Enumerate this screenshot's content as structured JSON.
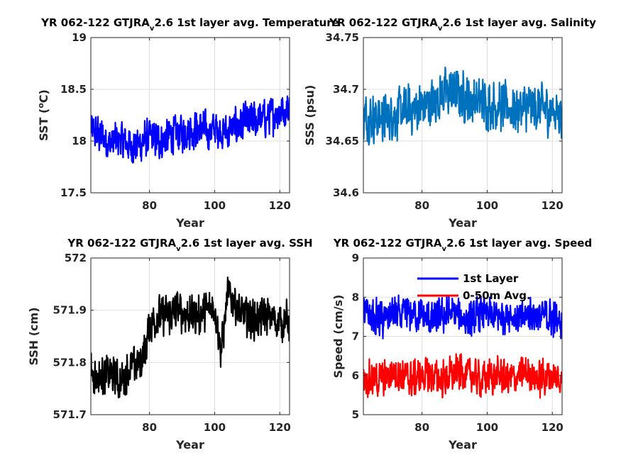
{
  "chart_data": [
    {
      "type": "line",
      "title": {
        "pre": "YR 062-122 GTJRA",
        "sub": "v",
        "post": "2.6 1st layer avg. Temperature"
      },
      "xlabel": "Year",
      "ylabel": {
        "pre": "SST (",
        "sup": "o",
        "post": "C)"
      },
      "xlim": [
        62,
        123
      ],
      "ylim": [
        17.5,
        19
      ],
      "xticks": [
        "80",
        "100",
        "120"
      ],
      "yticks": [
        "17.5",
        "18",
        "18.5",
        "19"
      ],
      "grid": true,
      "series": [
        {
          "color": "#0000ff",
          "x": [
            62,
            65,
            68,
            71,
            74,
            77,
            80,
            83,
            86,
            89,
            92,
            95,
            98,
            101,
            104,
            107,
            110,
            113,
            116,
            119,
            122
          ],
          "y": [
            18.1,
            18.05,
            17.98,
            18.02,
            17.95,
            17.98,
            18.03,
            18.0,
            18.05,
            18.08,
            18.1,
            18.12,
            18.1,
            18.12,
            18.08,
            18.15,
            18.18,
            18.2,
            18.22,
            18.28,
            18.3
          ]
        }
      ]
    },
    {
      "type": "line",
      "title": {
        "pre": "YR 062-122 GTJRA",
        "sub": "v",
        "post": "2.6 1st layer avg. Salinity"
      },
      "xlabel": "Year",
      "ylabel": {
        "pre": "SSS (psu)",
        "sup": "",
        "post": ""
      },
      "xlim": [
        62,
        123
      ],
      "ylim": [
        34.6,
        34.75
      ],
      "xticks": [
        "80",
        "100",
        "120"
      ],
      "yticks": [
        "34.6",
        "34.65",
        "34.7",
        "34.75"
      ],
      "grid": true,
      "series": [
        {
          "color": "#0072bd",
          "x": [
            62,
            65,
            68,
            71,
            74,
            77,
            80,
            83,
            86,
            89,
            92,
            95,
            98,
            101,
            104,
            107,
            110,
            113,
            116,
            119,
            122
          ],
          "y": [
            34.675,
            34.673,
            34.672,
            34.675,
            34.678,
            34.68,
            34.683,
            34.688,
            34.695,
            34.697,
            34.693,
            34.69,
            34.688,
            34.685,
            34.683,
            34.682,
            34.681,
            34.683,
            34.682,
            34.68,
            34.678
          ]
        }
      ]
    },
    {
      "type": "line",
      "title": {
        "pre": "YR 062-122 GTJRA",
        "sub": "v",
        "post": "2.6 1st layer avg. SSH"
      },
      "xlabel": "Year",
      "ylabel": {
        "pre": "SSH (cm)",
        "sup": "",
        "post": ""
      },
      "xlim": [
        62,
        123
      ],
      "ylim": [
        571.7,
        572
      ],
      "xticks": [
        "80",
        "100",
        "120"
      ],
      "yticks": [
        "571.7",
        "571.8",
        "571.9",
        "572"
      ],
      "grid": true,
      "series": [
        {
          "color": "#000000",
          "x": [
            62,
            65,
            68,
            71,
            74,
            77,
            79,
            80,
            83,
            86,
            89,
            92,
            95,
            98,
            100,
            102,
            104,
            106,
            108,
            110,
            113,
            116,
            119,
            122
          ],
          "y": [
            571.78,
            571.77,
            571.78,
            571.76,
            571.79,
            571.8,
            571.83,
            571.87,
            571.89,
            571.89,
            571.9,
            571.89,
            571.89,
            571.9,
            571.91,
            571.82,
            571.93,
            571.92,
            571.89,
            571.89,
            571.88,
            571.89,
            571.88,
            571.88
          ]
        }
      ]
    },
    {
      "type": "line",
      "title": {
        "pre": "YR 062-122 GTJRA",
        "sub": "v",
        "post": "2.6 1st layer avg. Speed"
      },
      "xlabel": "Year",
      "ylabel": {
        "pre": "Speed (cm/s)",
        "sup": "",
        "post": ""
      },
      "xlim": [
        62,
        123
      ],
      "ylim": [
        5,
        9
      ],
      "xticks": [
        "80",
        "100",
        "120"
      ],
      "yticks": [
        "5",
        "6",
        "7",
        "8",
        "9"
      ],
      "grid": true,
      "legend": {
        "position": "top"
      },
      "series": [
        {
          "name": "1st Layer",
          "color": "#0000ff",
          "x": [
            62,
            65,
            68,
            71,
            74,
            77,
            80,
            83,
            86,
            89,
            92,
            95,
            98,
            101,
            104,
            107,
            110,
            113,
            116,
            119,
            122
          ],
          "y": [
            7.6,
            7.5,
            7.4,
            7.6,
            7.5,
            7.6,
            7.5,
            7.4,
            7.5,
            7.6,
            7.5,
            7.4,
            7.6,
            7.5,
            7.5,
            7.6,
            7.4,
            7.6,
            7.5,
            7.5,
            7.4
          ]
        },
        {
          "name": "0-50m Avg.",
          "color": "#ff0000",
          "x": [
            62,
            65,
            68,
            71,
            74,
            77,
            80,
            83,
            86,
            89,
            92,
            95,
            98,
            101,
            104,
            107,
            110,
            113,
            116,
            119,
            122
          ],
          "y": [
            6.0,
            5.9,
            5.9,
            6.1,
            6.0,
            5.9,
            6.0,
            6.0,
            5.9,
            6.0,
            6.1,
            6.0,
            5.9,
            6.0,
            6.0,
            5.9,
            6.0,
            6.1,
            5.9,
            6.0,
            5.9
          ]
        }
      ]
    }
  ]
}
